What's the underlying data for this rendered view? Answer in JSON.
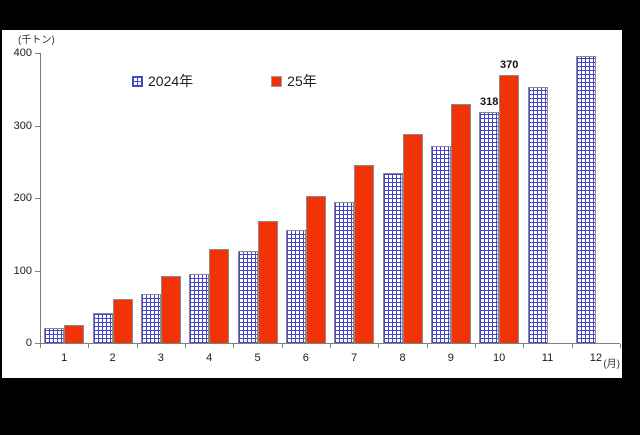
{
  "frame": {
    "background": "#000000",
    "panel_background": "#ffffff"
  },
  "chart_data": {
    "type": "bar",
    "title": "",
    "unit_label": "(千トン)",
    "x_unit_label": "(月)",
    "categories": [
      "1",
      "2",
      "3",
      "4",
      "5",
      "6",
      "7",
      "8",
      "9",
      "10",
      "11",
      "12"
    ],
    "series": [
      {
        "name": "2024年",
        "style": "hatch",
        "color": "#4646c8",
        "values": [
          20,
          41,
          68,
          95,
          127,
          156,
          194,
          235,
          272,
          318,
          353,
          396
        ]
      },
      {
        "name": "25年",
        "style": "solid",
        "color": "#f23307",
        "values": [
          25,
          60,
          92,
          130,
          168,
          203,
          246,
          288,
          330,
          370,
          null,
          null
        ]
      }
    ],
    "y_ticks": [
      0,
      100,
      200,
      300,
      400
    ],
    "ylim": [
      0,
      400
    ],
    "grid": false,
    "legend_position": "top-center",
    "data_labels": [
      {
        "series": 0,
        "category": "10",
        "text": "318"
      },
      {
        "series": 1,
        "category": "10",
        "text": "370"
      }
    ]
  }
}
